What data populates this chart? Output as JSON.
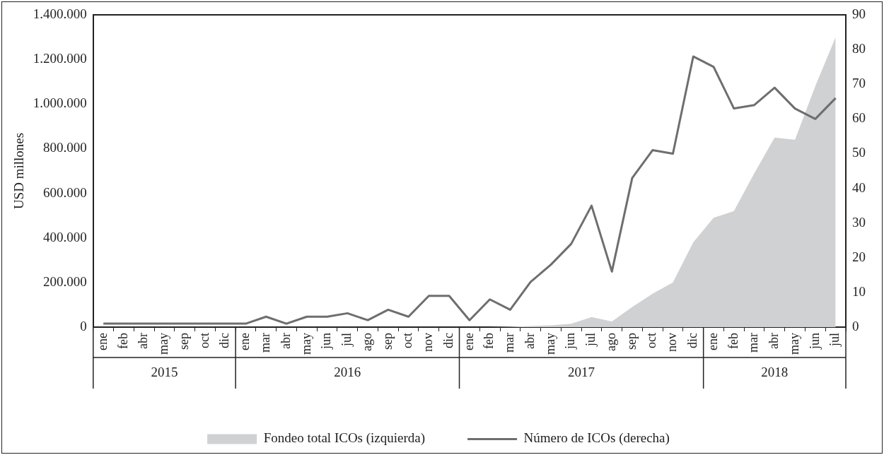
{
  "chart_data": {
    "type": "area",
    "ylabel": "USD millones",
    "categories": [
      "ene",
      "feb",
      "abr",
      "may",
      "sep",
      "oct",
      "dic",
      "ene",
      "mar",
      "abr",
      "may",
      "jun",
      "jul",
      "ago",
      "sep",
      "oct",
      "nov",
      "dic",
      "ene",
      "feb",
      "mar",
      "abr",
      "may",
      "jun",
      "jul",
      "ago",
      "sep",
      "oct",
      "nov",
      "dic",
      "ene",
      "feb",
      "mar",
      "abr",
      "may",
      "jun",
      "jul"
    ],
    "annotations": [
      "2015",
      "2016",
      "2017",
      "2018"
    ],
    "series": [
      {
        "name": "Fondeo total ICOs (izquierda)",
        "color": "#d0d1d3",
        "values": [
          0,
          0,
          0,
          0,
          0,
          0,
          0,
          0,
          0,
          0,
          0,
          0,
          0,
          0,
          0,
          0,
          0,
          0,
          0,
          0,
          2000,
          5000,
          8000,
          15000,
          45000,
          25000,
          90000,
          150000,
          200000,
          380000,
          490000,
          520000,
          690000,
          850000,
          840000,
          1080000,
          1300000
        ]
      },
      {
        "name": "Número de ICOs (derecha)",
        "type": "line",
        "axis": "y2",
        "color": "#6d6e70",
        "values": [
          1,
          1,
          1,
          1,
          1,
          1,
          1,
          1,
          3,
          1,
          3,
          3,
          4,
          2,
          5,
          3,
          9,
          9,
          2,
          8,
          5,
          13,
          18,
          24,
          35,
          16,
          43,
          51,
          50,
          78,
          75,
          63,
          64,
          69,
          63,
          60,
          66
        ]
      }
    ],
    "ylim": [
      0,
      1400000
    ],
    "yticks": [
      0,
      {
        "value": 200000,
        "label": "200.000"
      },
      {
        "value": 400000,
        "label": "400.000"
      },
      {
        "value": 600000,
        "label": "600.000"
      },
      {
        "value": 800000,
        "label": "800.000"
      },
      {
        "value": 1000000,
        "label": "1.000.000"
      },
      {
        "value": 1200000,
        "label": "1.200.000"
      },
      {
        "value": 1400000,
        "label": "1.400.000"
      }
    ],
    "y2lim": [
      0,
      90
    ],
    "y2ticks": [
      0,
      10,
      20,
      30,
      40,
      50,
      60,
      70,
      80,
      90
    ],
    "grid": false,
    "legend": "bottom",
    "marker": "none",
    "line_style": "solid"
  }
}
